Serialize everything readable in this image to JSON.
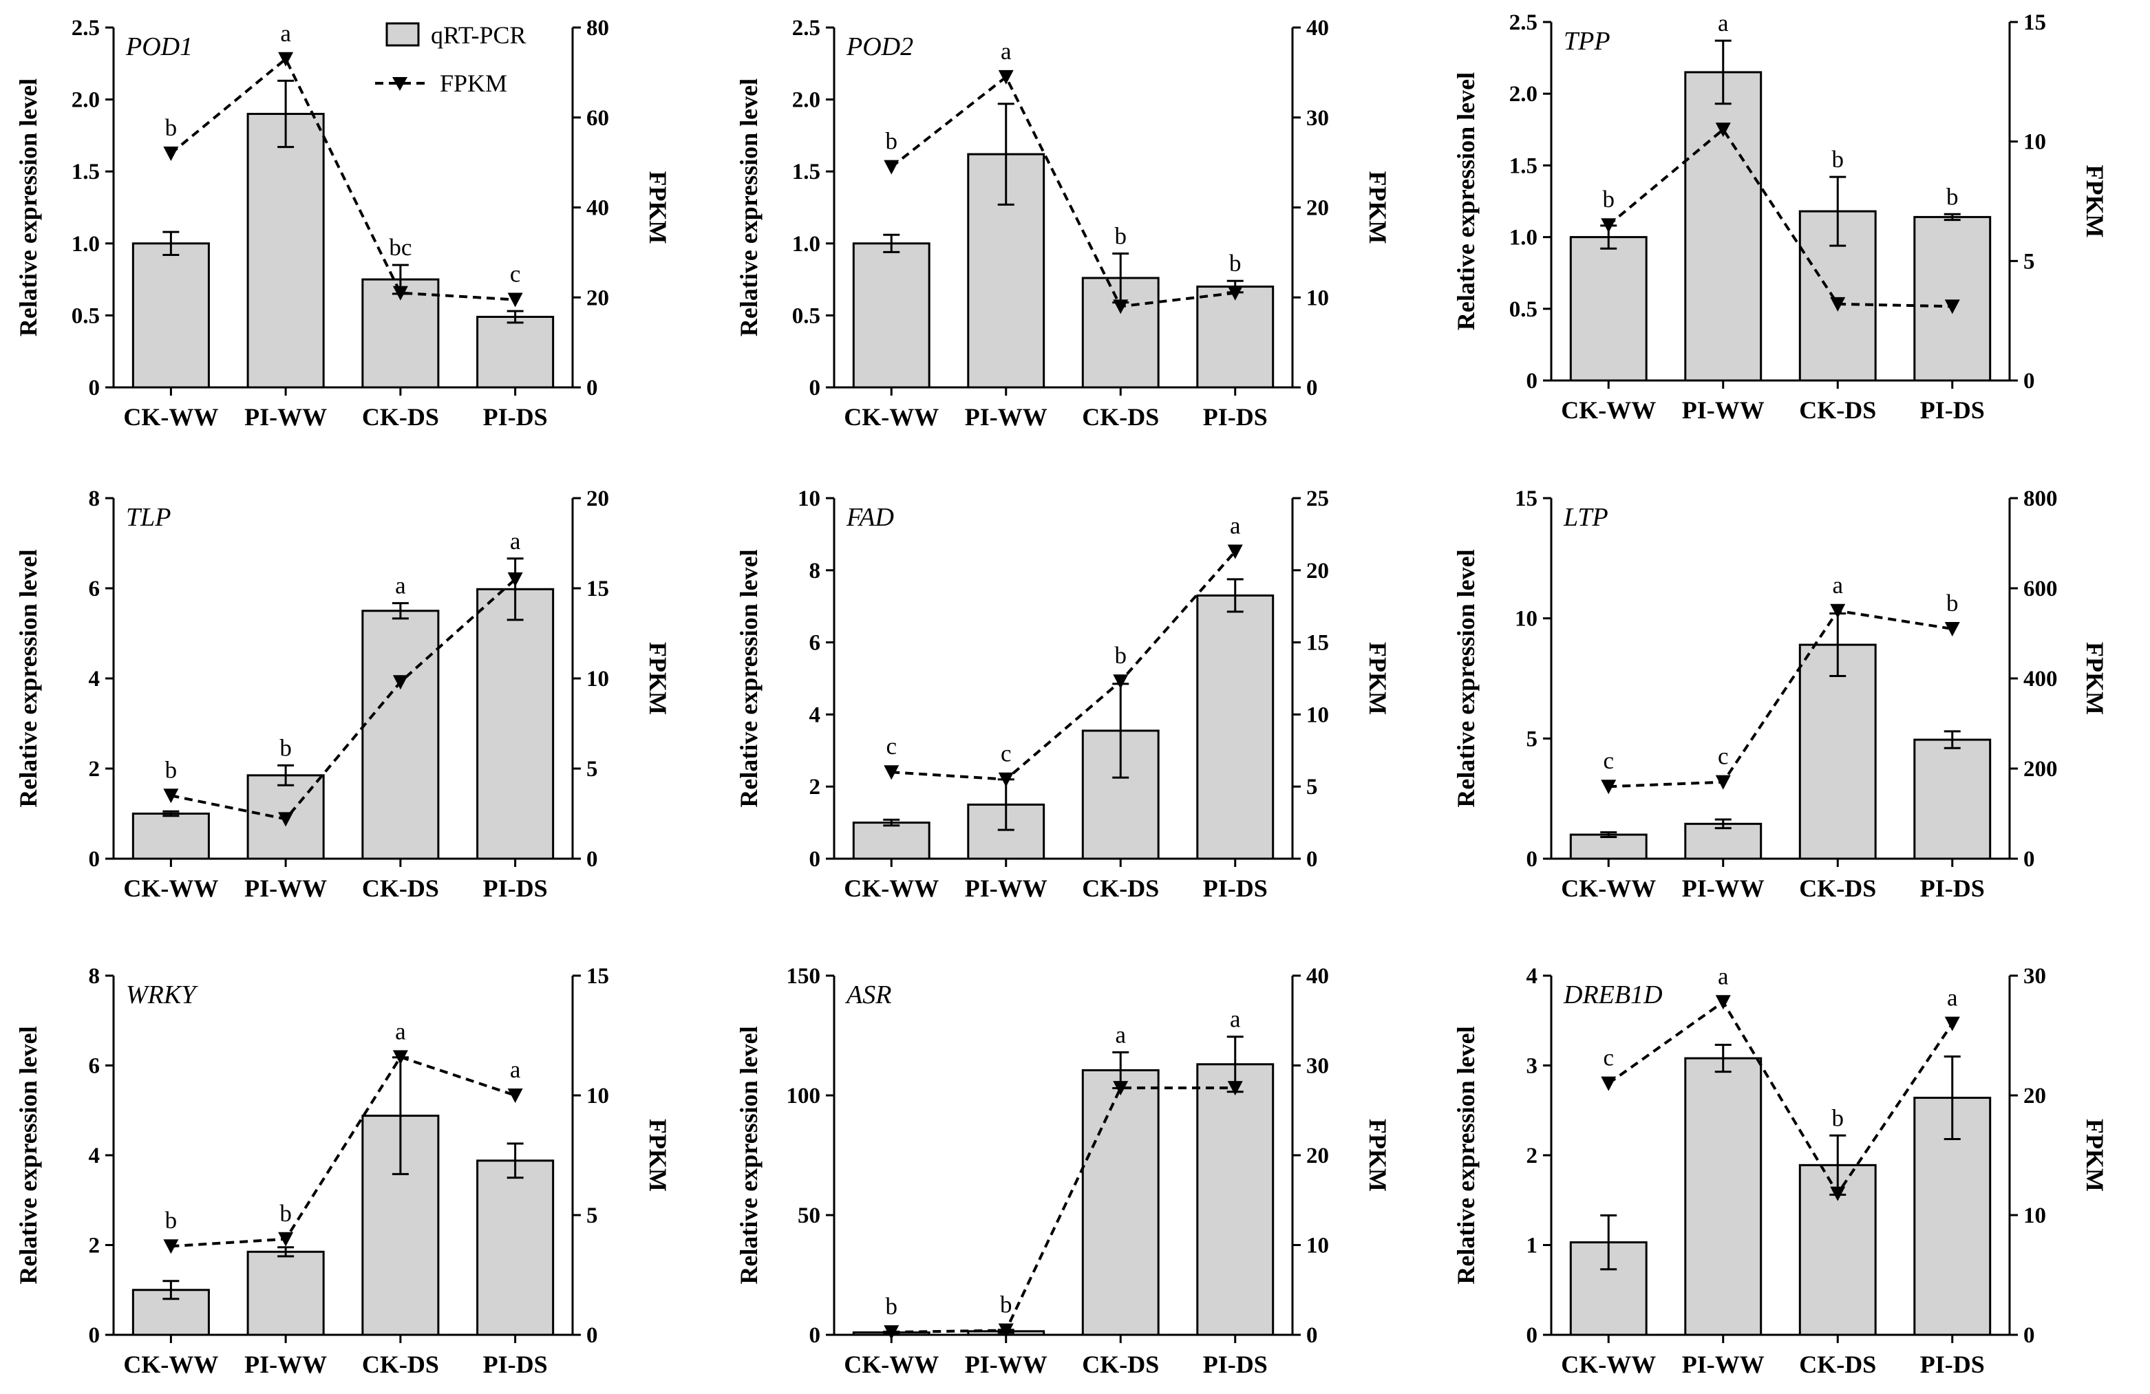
{
  "chart_data": [
    {
      "type": "bar",
      "gene": "POD1",
      "categories": [
        "CK-WW",
        "PI-WW",
        "CK-DS",
        "PI-DS"
      ],
      "ylabel": "Relative expression level",
      "y2label": "FPKM",
      "ylim": [
        0,
        2.5
      ],
      "y_ticks": [
        0,
        0.5,
        1.0,
        1.5,
        2.0,
        2.5
      ],
      "y2lim": [
        0,
        80
      ],
      "y2_ticks": [
        0,
        20,
        40,
        60,
        80
      ],
      "series": [
        {
          "name": "qRT-PCR",
          "values": [
            1.0,
            1.9,
            0.75,
            0.49
          ],
          "errors": [
            0.08,
            0.23,
            0.1,
            0.04
          ],
          "labels": [
            "b",
            "a",
            "bc",
            "c"
          ]
        },
        {
          "name": "FPKM",
          "values": [
            52,
            73,
            21,
            19.5
          ]
        }
      ]
    },
    {
      "type": "bar",
      "gene": "POD2",
      "categories": [
        "CK-WW",
        "PI-WW",
        "CK-DS",
        "PI-DS"
      ],
      "ylabel": "Relative expression level",
      "y2label": "FPKM",
      "ylim": [
        0,
        2.5
      ],
      "y_ticks": [
        0,
        0.5,
        1.0,
        1.5,
        2.0,
        2.5
      ],
      "y2lim": [
        0,
        40
      ],
      "y2_ticks": [
        0,
        10,
        20,
        30,
        40
      ],
      "series": [
        {
          "name": "qRT-PCR",
          "values": [
            1.0,
            1.62,
            0.76,
            0.7
          ],
          "errors": [
            0.06,
            0.35,
            0.17,
            0.04
          ],
          "labels": [
            "b",
            "a",
            "b",
            "b"
          ]
        },
        {
          "name": "FPKM",
          "values": [
            24.5,
            34.5,
            9,
            10.5
          ]
        }
      ]
    },
    {
      "type": "bar",
      "gene": "TPP",
      "categories": [
        "CK-WW",
        "PI-WW",
        "CK-DS",
        "PI-DS"
      ],
      "ylabel": "Relative expression level",
      "y2label": "FPKM",
      "ylim": [
        0,
        2.5
      ],
      "y_ticks": [
        0,
        0.5,
        1.0,
        1.5,
        2.0,
        2.5
      ],
      "y2lim": [
        0,
        15
      ],
      "y2_ticks": [
        0,
        5,
        10,
        15
      ],
      "series": [
        {
          "name": "qRT-PCR",
          "values": [
            1.0,
            2.15,
            1.18,
            1.14
          ],
          "errors": [
            0.08,
            0.22,
            0.24,
            0.02
          ],
          "labels": [
            "b",
            "a",
            "b",
            "b"
          ]
        },
        {
          "name": "FPKM",
          "values": [
            6.5,
            10.5,
            3.2,
            3.1
          ]
        }
      ]
    },
    {
      "type": "bar",
      "gene": "TLP",
      "categories": [
        "CK-WW",
        "PI-WW",
        "CK-DS",
        "PI-DS"
      ],
      "ylabel": "Relative expression level",
      "y2label": "FPKM",
      "ylim": [
        0,
        8
      ],
      "y_ticks": [
        0,
        2,
        4,
        6,
        8
      ],
      "y2lim": [
        0,
        20
      ],
      "y2_ticks": [
        0,
        5,
        10,
        15,
        20
      ],
      "series": [
        {
          "name": "qRT-PCR",
          "values": [
            1.0,
            1.85,
            5.5,
            5.98
          ],
          "errors": [
            0.05,
            0.22,
            0.17,
            0.68
          ],
          "labels": [
            "b",
            "b",
            "a",
            "a"
          ]
        },
        {
          "name": "FPKM",
          "values": [
            3.5,
            2.2,
            9.8,
            15.5
          ]
        }
      ]
    },
    {
      "type": "bar",
      "gene": "FAD",
      "categories": [
        "CK-WW",
        "PI-WW",
        "CK-DS",
        "PI-DS"
      ],
      "ylabel": "Relative expression level",
      "y2label": "FPKM",
      "ylim": [
        0,
        10
      ],
      "y_ticks": [
        0,
        2,
        4,
        6,
        8,
        10
      ],
      "y2lim": [
        0,
        25
      ],
      "y2_ticks": [
        0,
        5,
        10,
        15,
        20,
        25
      ],
      "series": [
        {
          "name": "qRT-PCR",
          "values": [
            1.0,
            1.5,
            3.55,
            7.3
          ],
          "errors": [
            0.08,
            0.7,
            1.3,
            0.45
          ],
          "labels": [
            "c",
            "c",
            "b",
            "a"
          ]
        },
        {
          "name": "FPKM",
          "values": [
            6,
            5.5,
            12.3,
            21.3
          ]
        }
      ]
    },
    {
      "type": "bar",
      "gene": "LTP",
      "categories": [
        "CK-WW",
        "PI-WW",
        "CK-DS",
        "PI-DS"
      ],
      "ylabel": "Relative expression level",
      "y2label": "FPKM",
      "ylim": [
        0,
        15
      ],
      "y_ticks": [
        0,
        5,
        10,
        15
      ],
      "y2lim": [
        0,
        800
      ],
      "y2_ticks": [
        0,
        200,
        400,
        600,
        800
      ],
      "series": [
        {
          "name": "qRT-PCR",
          "values": [
            1.0,
            1.45,
            8.9,
            4.95
          ],
          "errors": [
            0.1,
            0.18,
            1.3,
            0.35
          ],
          "labels": [
            "c",
            "c",
            "a",
            "b"
          ]
        },
        {
          "name": "FPKM",
          "values": [
            160,
            170,
            550,
            510
          ]
        }
      ]
    },
    {
      "type": "bar",
      "gene": "WRKY",
      "categories": [
        "CK-WW",
        "PI-WW",
        "CK-DS",
        "PI-DS"
      ],
      "ylabel": "Relative expression level",
      "y2label": "FPKM",
      "ylim": [
        0,
        8
      ],
      "y_ticks": [
        0,
        2,
        4,
        6,
        8
      ],
      "y2lim": [
        0,
        15
      ],
      "y2_ticks": [
        0,
        5,
        10,
        15
      ],
      "series": [
        {
          "name": "qRT-PCR",
          "values": [
            1.0,
            1.85,
            4.88,
            3.88
          ],
          "errors": [
            0.2,
            0.1,
            1.3,
            0.38
          ],
          "labels": [
            "b",
            "b",
            "a",
            "a"
          ]
        },
        {
          "name": "FPKM",
          "values": [
            3.7,
            4.0,
            11.6,
            10.0
          ]
        }
      ]
    },
    {
      "type": "bar",
      "gene": "ASR",
      "categories": [
        "CK-WW",
        "PI-WW",
        "CK-DS",
        "PI-DS"
      ],
      "ylabel": "Relative expression level",
      "y2label": "FPKM",
      "ylim": [
        0,
        150
      ],
      "y_ticks": [
        0,
        50,
        100,
        150
      ],
      "y2lim": [
        0,
        40
      ],
      "y2_ticks": [
        0,
        10,
        20,
        30,
        40
      ],
      "series": [
        {
          "name": "qRT-PCR",
          "values": [
            1.0,
            1.5,
            110.5,
            113
          ],
          "errors": [
            0.3,
            0.6,
            7.5,
            11.5
          ],
          "labels": [
            "b",
            "b",
            "a",
            "a"
          ]
        },
        {
          "name": "FPKM",
          "values": [
            0.3,
            0.5,
            27.5,
            27.5
          ]
        }
      ]
    },
    {
      "type": "bar",
      "gene": "DREB1D",
      "categories": [
        "CK-WW",
        "PI-WW",
        "CK-DS",
        "PI-DS"
      ],
      "ylabel": "Relative expression level",
      "y2label": "FPKM",
      "ylim": [
        0,
        4
      ],
      "y_ticks": [
        0,
        1,
        2,
        3,
        4
      ],
      "y2lim": [
        0,
        30
      ],
      "y2_ticks": [
        0,
        10,
        20,
        30
      ],
      "series": [
        {
          "name": "qRT-PCR",
          "values": [
            1.03,
            3.08,
            1.89,
            2.64
          ],
          "errors": [
            0.3,
            0.15,
            0.33,
            0.46
          ],
          "labels": [
            "c",
            "a",
            "b",
            "a"
          ]
        },
        {
          "name": "FPKM",
          "values": [
            21,
            27.8,
            11.8,
            26
          ]
        }
      ]
    }
  ],
  "legend": {
    "bar_label": "qRT-PCR",
    "line_label": "FPKM",
    "placement": "top of first panel"
  }
}
